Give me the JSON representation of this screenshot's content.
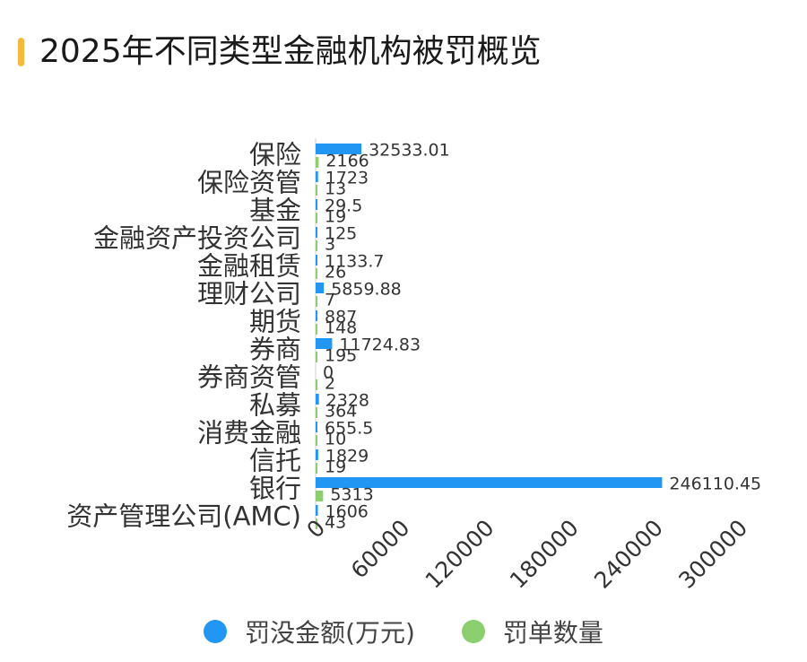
{
  "title": "2025年不同类型金融机构被罚概览",
  "colors": {
    "accent": "#f6b93b",
    "amount": "#2196f3",
    "count": "#8ccf6e"
  },
  "chart_data": {
    "type": "bar",
    "orientation": "horizontal",
    "categories": [
      "保险",
      "保险资管",
      "基金",
      "金融资产投资公司",
      "金融租赁",
      "理财公司",
      "期货",
      "券商",
      "券商资管",
      "私募",
      "消费金融",
      "信托",
      "银行",
      "资产管理公司(AMC)"
    ],
    "series": [
      {
        "name": "罚没金额(万元)",
        "color": "#2196f3",
        "values": [
          32533.01,
          1723,
          29.5,
          125,
          1133.7,
          5859.88,
          887,
          11724.83,
          0,
          2328,
          655.5,
          1829,
          246110.45,
          1606
        ],
        "labels": [
          "32533.01",
          "1723",
          "29.5",
          "125",
          "1133.7",
          "5859.88",
          "887",
          "11724.83",
          "0",
          "2328",
          "655.5",
          "1829",
          "246110.45",
          "1606"
        ]
      },
      {
        "name": "罚单数量",
        "color": "#8ccf6e",
        "values": [
          2166,
          13,
          19,
          3,
          26,
          7,
          148,
          195,
          2,
          364,
          10,
          19,
          5313,
          43
        ],
        "labels": [
          "2166",
          "13",
          "19",
          "3",
          "26",
          "7",
          "148",
          "195",
          "2",
          "364",
          "10",
          "19",
          "5313",
          "43"
        ]
      }
    ],
    "xlim": [
      0,
      300000
    ],
    "xticks": [
      "0",
      "60000",
      "120000",
      "180000",
      "240000",
      "300000"
    ],
    "xtick_values": [
      0,
      60000,
      120000,
      180000,
      240000,
      300000
    ],
    "legend_position": "bottom",
    "grid": false
  }
}
